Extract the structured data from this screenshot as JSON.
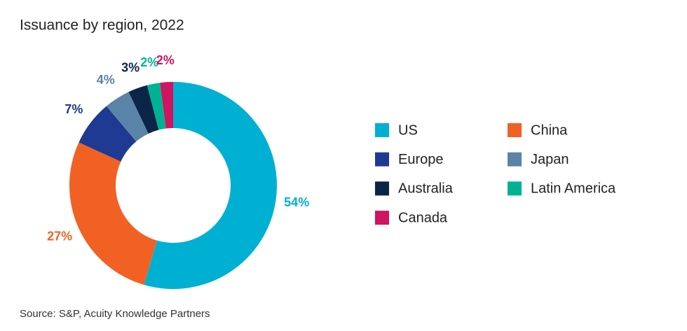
{
  "chart_data": {
    "type": "donut",
    "title": "Issuance by region, 2022",
    "source": "Source: S&P, Acuity Knowledge Partners",
    "categories": [
      "US",
      "China",
      "Europe",
      "Japan",
      "Australia",
      "Latin America",
      "Canada"
    ],
    "values": [
      54,
      27,
      7,
      4,
      3,
      2,
      2
    ],
    "value_labels": [
      "54%",
      "27%",
      "7%",
      "4%",
      "3%",
      "2%",
      "2%"
    ],
    "colors": [
      "#00b0d2",
      "#f26124",
      "#1f3a93",
      "#5a84a7",
      "#0b2548",
      "#00b294",
      "#cf1460"
    ]
  }
}
